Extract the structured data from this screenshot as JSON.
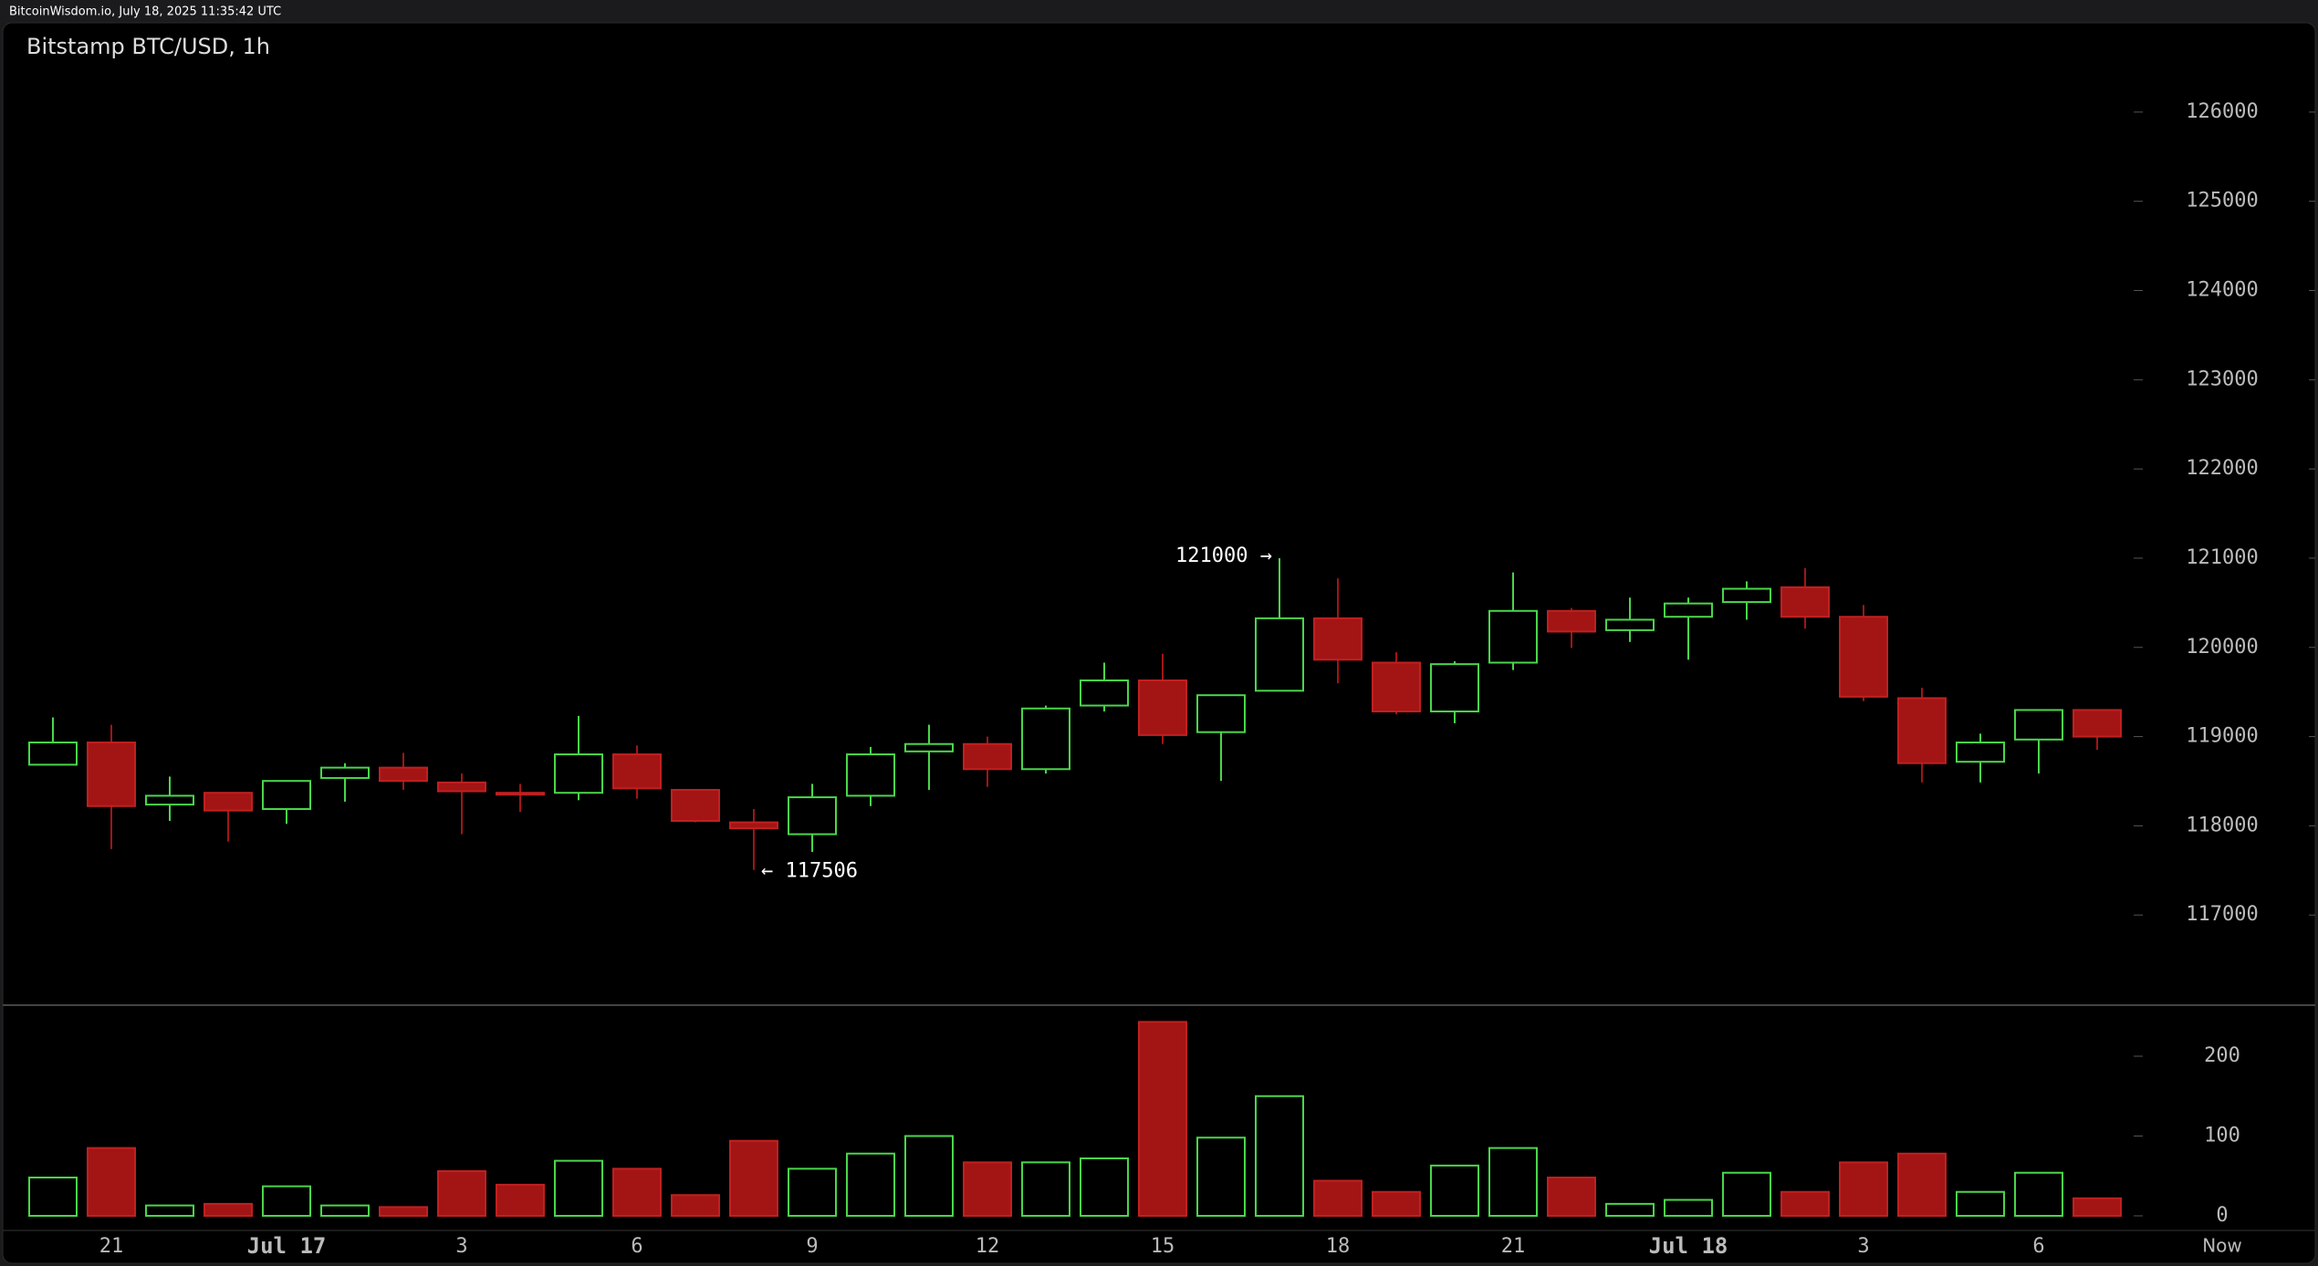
{
  "header": "BitcoinWisdom.io, July 18, 2025 11:35:42 UTC",
  "chart_data": {
    "type": "candlestick",
    "title": "Bitstamp BTC/USD, 1h",
    "categories": [
      null,
      "21",
      null,
      null,
      "Jul 17",
      null,
      null,
      "3",
      null,
      null,
      "6",
      null,
      null,
      "9",
      null,
      null,
      "12",
      null,
      null,
      "15",
      null,
      null,
      "18",
      null,
      null,
      "21",
      null,
      null,
      "Jul 18",
      null,
      null,
      "3",
      null,
      null,
      "6",
      null
    ],
    "now_label": "Now",
    "open": [
      118685,
      118934,
      118238,
      118370,
      118188,
      118536,
      118652,
      118486,
      118370,
      118370,
      118801,
      118403,
      118039,
      117906,
      118337,
      118834,
      118917,
      118635,
      119348,
      119630,
      119050,
      119514,
      120326,
      119829,
      119282,
      119829,
      120409,
      120193,
      120343,
      120508,
      120674,
      120343,
      119431,
      118718,
      118967,
      119298
    ],
    "high": [
      119215,
      119133,
      118552,
      118370,
      118503,
      118702,
      118818,
      118586,
      118470,
      119232,
      118900,
      118403,
      118188,
      118470,
      118884,
      119133,
      119000,
      119348,
      119829,
      119928,
      119464,
      121000,
      120773,
      119945,
      119845,
      120840,
      120442,
      120558,
      120558,
      120740,
      120889,
      120475,
      119547,
      119033,
      119298,
      119298
    ],
    "low": [
      118685,
      117740,
      118055,
      117823,
      118022,
      118271,
      118403,
      117906,
      118155,
      118287,
      118304,
      118039,
      117506,
      117707,
      118221,
      118403,
      118436,
      118586,
      119282,
      118917,
      118503,
      119514,
      119597,
      119249,
      119149,
      119746,
      119994,
      120061,
      119862,
      120310,
      120210,
      119397,
      118486,
      118486,
      118586,
      118851
    ],
    "close": [
      118934,
      118221,
      118337,
      118171,
      118503,
      118652,
      118503,
      118387,
      118354,
      118801,
      118420,
      118055,
      117972,
      118320,
      118801,
      118917,
      118635,
      119315,
      119630,
      119017,
      119464,
      120326,
      119862,
      119282,
      119812,
      120409,
      120177,
      120310,
      120492,
      120657,
      120343,
      119447,
      118702,
      118934,
      119298,
      119000
    ],
    "volume": [
      48,
      85,
      13,
      15,
      37,
      13,
      11,
      56,
      39,
      69,
      59,
      26,
      94,
      59,
      78,
      100,
      67,
      67,
      72,
      243,
      98,
      150,
      44,
      30,
      63,
      85,
      48,
      15,
      20,
      54,
      30,
      67,
      78,
      30,
      54,
      22
    ],
    "up_color": "#4ad64a",
    "down_color": "#a31515",
    "ylim": [
      115990,
      126510
    ],
    "yticks": [
      117000,
      118000,
      119000,
      120000,
      121000,
      122000,
      123000,
      124000,
      125000,
      126000
    ],
    "volume_ylim": [
      0,
      264
    ],
    "volume_yticks": [
      0,
      100,
      200
    ],
    "high_label": "121000 →",
    "low_label": "← 117506"
  }
}
